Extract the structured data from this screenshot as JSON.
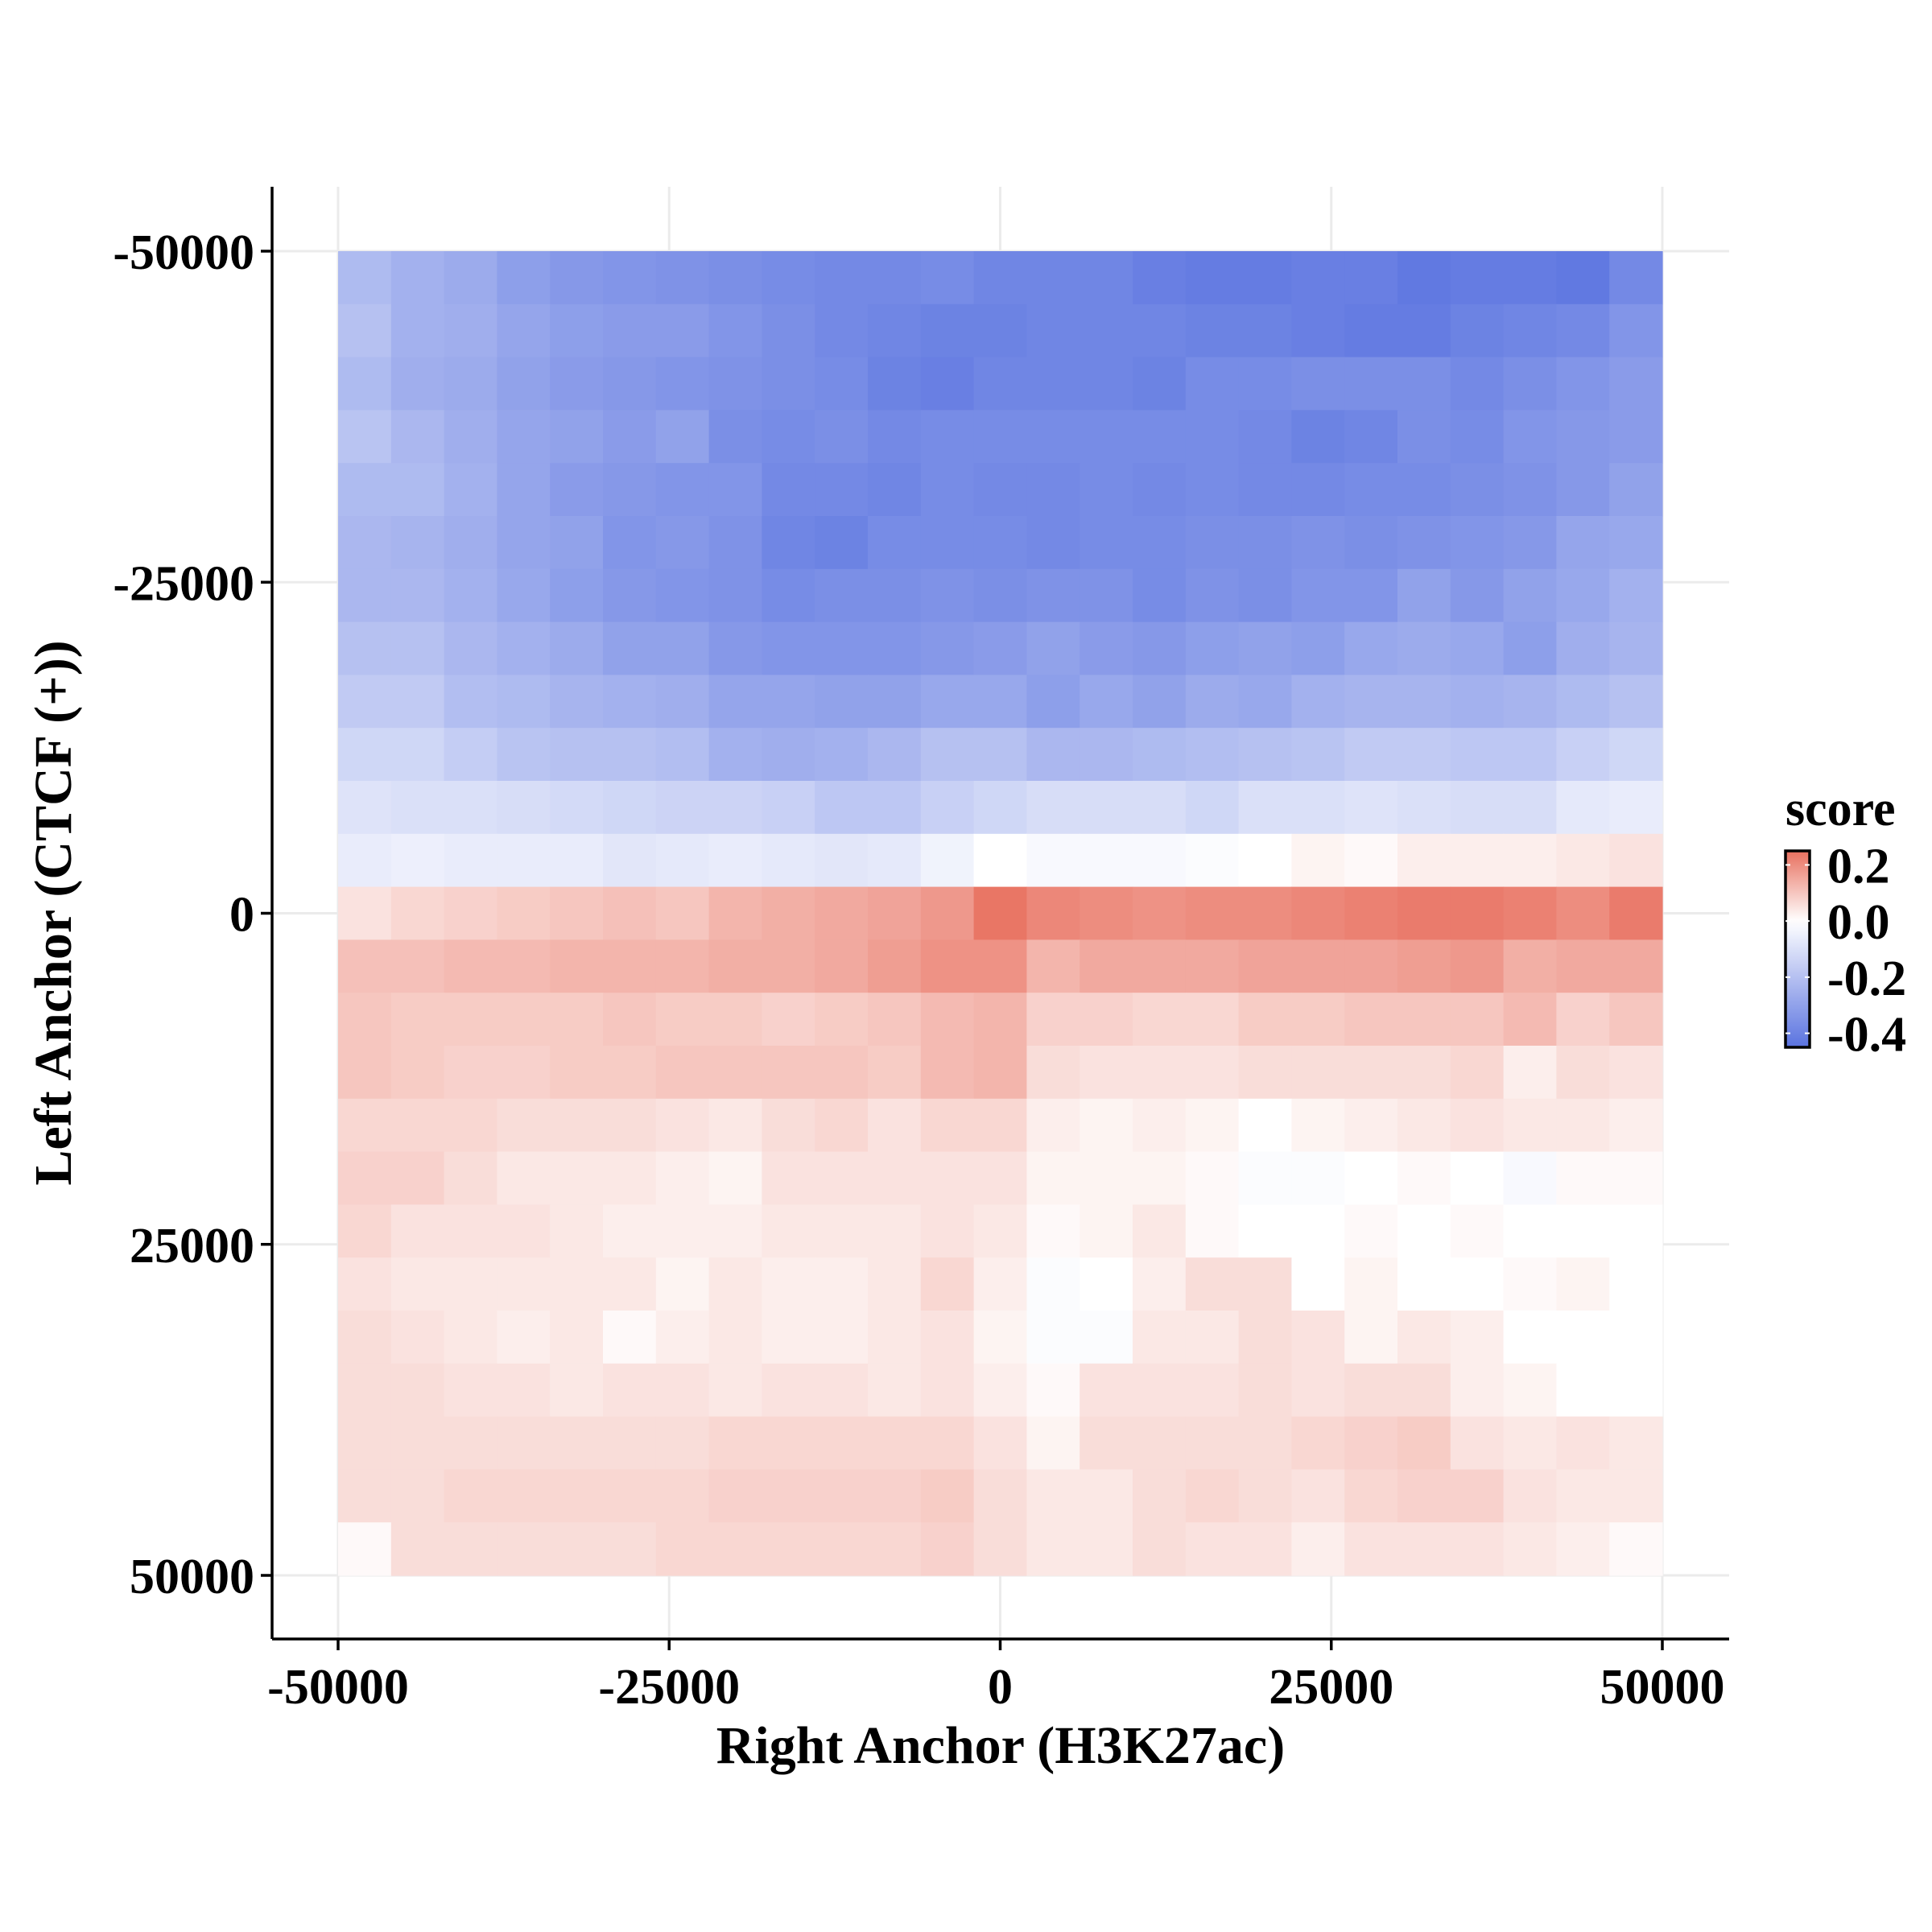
{
  "chart_data": {
    "type": "heatmap",
    "title": "",
    "xlabel": "Right Anchor (H3K27ac)",
    "ylabel": "Left Anchor (CTCF (+))",
    "x_range": [
      -50000,
      50000
    ],
    "y_range": [
      -50000,
      50000
    ],
    "y_axis_reversed": true,
    "x_ticks": [
      -50000,
      -25000,
      0,
      25000,
      50000
    ],
    "y_ticks": [
      -50000,
      -25000,
      0,
      25000,
      50000
    ],
    "x_tick_labels": [
      "-50000",
      "-25000",
      "0",
      "25000",
      "50000"
    ],
    "y_tick_labels": [
      "-50000",
      "-25000",
      "0",
      "25000",
      "50000"
    ],
    "grid": true,
    "legend": {
      "title": "score",
      "position": "right",
      "ticks": [
        0.2,
        0.0,
        -0.2,
        -0.4
      ],
      "tick_labels": [
        "0.2",
        "0.0",
        "-0.2",
        "-0.4"
      ],
      "range": [
        -0.45,
        0.25
      ],
      "low_color": "#5a73e0",
      "mid_color": "#ffffff",
      "high_color": "#e8705f"
    },
    "x_bins": [
      -50000,
      -46000,
      -42000,
      -38000,
      -34000,
      -30000,
      -26000,
      -22000,
      -18000,
      -14000,
      -10000,
      -6000,
      -2000,
      2000,
      6000,
      10000,
      14000,
      18000,
      22000,
      26000,
      30000,
      34000,
      38000,
      42000,
      46000,
      50000
    ],
    "y_bins": [
      -50000,
      -46000,
      -42000,
      -38000,
      -34000,
      -30000,
      -26000,
      -22000,
      -18000,
      -14000,
      -10000,
      -6000,
      -2000,
      2000,
      6000,
      10000,
      14000,
      18000,
      22000,
      26000,
      30000,
      34000,
      38000,
      42000,
      46000,
      50000
    ],
    "values": [
      [
        -0.22,
        -0.25,
        -0.27,
        -0.31,
        -0.33,
        -0.34,
        -0.35,
        -0.36,
        -0.37,
        -0.38,
        -0.38,
        -0.37,
        -0.39,
        -0.39,
        -0.39,
        -0.41,
        -0.42,
        -0.42,
        -0.41,
        -0.41,
        -0.43,
        -0.42,
        -0.42,
        -0.43,
        -0.38
      ],
      [
        -0.2,
        -0.25,
        -0.26,
        -0.29,
        -0.31,
        -0.32,
        -0.32,
        -0.34,
        -0.36,
        -0.38,
        -0.39,
        -0.4,
        -0.4,
        -0.39,
        -0.39,
        -0.39,
        -0.4,
        -0.4,
        -0.41,
        -0.42,
        -0.42,
        -0.4,
        -0.39,
        -0.38,
        -0.34
      ],
      [
        -0.22,
        -0.26,
        -0.27,
        -0.3,
        -0.32,
        -0.33,
        -0.34,
        -0.35,
        -0.36,
        -0.37,
        -0.4,
        -0.41,
        -0.39,
        -0.39,
        -0.39,
        -0.4,
        -0.37,
        -0.37,
        -0.36,
        -0.36,
        -0.36,
        -0.38,
        -0.36,
        -0.34,
        -0.32
      ],
      [
        -0.19,
        -0.23,
        -0.26,
        -0.29,
        -0.3,
        -0.32,
        -0.3,
        -0.36,
        -0.37,
        -0.36,
        -0.38,
        -0.37,
        -0.37,
        -0.37,
        -0.37,
        -0.37,
        -0.37,
        -0.38,
        -0.4,
        -0.39,
        -0.36,
        -0.37,
        -0.34,
        -0.33,
        -0.32
      ],
      [
        -0.22,
        -0.22,
        -0.25,
        -0.29,
        -0.32,
        -0.33,
        -0.34,
        -0.34,
        -0.38,
        -0.38,
        -0.39,
        -0.37,
        -0.38,
        -0.38,
        -0.37,
        -0.38,
        -0.37,
        -0.38,
        -0.38,
        -0.37,
        -0.37,
        -0.36,
        -0.35,
        -0.33,
        -0.3
      ],
      [
        -0.23,
        -0.24,
        -0.26,
        -0.29,
        -0.3,
        -0.34,
        -0.33,
        -0.35,
        -0.39,
        -0.4,
        -0.37,
        -0.37,
        -0.37,
        -0.38,
        -0.37,
        -0.37,
        -0.36,
        -0.36,
        -0.35,
        -0.36,
        -0.35,
        -0.34,
        -0.33,
        -0.29,
        -0.28
      ],
      [
        -0.23,
        -0.23,
        -0.25,
        -0.28,
        -0.31,
        -0.33,
        -0.34,
        -0.35,
        -0.37,
        -0.36,
        -0.36,
        -0.35,
        -0.36,
        -0.35,
        -0.35,
        -0.37,
        -0.35,
        -0.36,
        -0.34,
        -0.34,
        -0.3,
        -0.33,
        -0.3,
        -0.28,
        -0.25
      ],
      [
        -0.2,
        -0.2,
        -0.23,
        -0.25,
        -0.27,
        -0.3,
        -0.3,
        -0.33,
        -0.34,
        -0.34,
        -0.34,
        -0.33,
        -0.32,
        -0.3,
        -0.32,
        -0.33,
        -0.31,
        -0.3,
        -0.31,
        -0.28,
        -0.27,
        -0.28,
        -0.31,
        -0.26,
        -0.24
      ],
      [
        -0.17,
        -0.17,
        -0.21,
        -0.22,
        -0.24,
        -0.25,
        -0.26,
        -0.29,
        -0.29,
        -0.3,
        -0.3,
        -0.28,
        -0.28,
        -0.31,
        -0.28,
        -0.3,
        -0.27,
        -0.28,
        -0.25,
        -0.24,
        -0.24,
        -0.25,
        -0.24,
        -0.22,
        -0.2
      ],
      [
        -0.13,
        -0.13,
        -0.16,
        -0.19,
        -0.2,
        -0.2,
        -0.21,
        -0.25,
        -0.26,
        -0.25,
        -0.23,
        -0.2,
        -0.2,
        -0.23,
        -0.23,
        -0.22,
        -0.21,
        -0.2,
        -0.19,
        -0.17,
        -0.17,
        -0.18,
        -0.18,
        -0.15,
        -0.13
      ],
      [
        -0.09,
        -0.1,
        -0.1,
        -0.11,
        -0.12,
        -0.13,
        -0.14,
        -0.14,
        -0.15,
        -0.18,
        -0.18,
        -0.15,
        -0.13,
        -0.11,
        -0.11,
        -0.11,
        -0.13,
        -0.1,
        -0.1,
        -0.09,
        -0.1,
        -0.11,
        -0.11,
        -0.07,
        -0.06
      ],
      [
        -0.06,
        -0.05,
        -0.06,
        -0.06,
        -0.06,
        -0.08,
        -0.07,
        -0.06,
        -0.07,
        -0.08,
        -0.07,
        -0.04,
        0.0,
        -0.02,
        -0.02,
        -0.02,
        -0.01,
        0.0,
        0.02,
        0.01,
        0.03,
        0.03,
        0.03,
        0.04,
        0.05
      ],
      [
        0.05,
        0.07,
        0.08,
        0.09,
        0.1,
        0.11,
        0.1,
        0.13,
        0.14,
        0.15,
        0.16,
        0.18,
        0.24,
        0.21,
        0.2,
        0.19,
        0.2,
        0.2,
        0.21,
        0.22,
        0.23,
        0.23,
        0.22,
        0.2,
        0.23
      ],
      [
        0.11,
        0.11,
        0.12,
        0.12,
        0.13,
        0.13,
        0.13,
        0.14,
        0.14,
        0.15,
        0.17,
        0.19,
        0.19,
        0.13,
        0.15,
        0.15,
        0.15,
        0.16,
        0.16,
        0.16,
        0.17,
        0.18,
        0.14,
        0.15,
        0.15
      ],
      [
        0.1,
        0.09,
        0.09,
        0.09,
        0.09,
        0.1,
        0.09,
        0.09,
        0.08,
        0.09,
        0.1,
        0.12,
        0.13,
        0.08,
        0.08,
        0.07,
        0.07,
        0.09,
        0.09,
        0.1,
        0.1,
        0.1,
        0.12,
        0.08,
        0.1
      ],
      [
        0.1,
        0.09,
        0.08,
        0.08,
        0.09,
        0.09,
        0.1,
        0.1,
        0.1,
        0.1,
        0.09,
        0.12,
        0.13,
        0.06,
        0.05,
        0.05,
        0.05,
        0.06,
        0.06,
        0.06,
        0.06,
        0.07,
        0.03,
        0.06,
        0.05
      ],
      [
        0.07,
        0.07,
        0.07,
        0.06,
        0.06,
        0.06,
        0.05,
        0.04,
        0.06,
        0.07,
        0.05,
        0.07,
        0.07,
        0.03,
        0.02,
        0.03,
        0.02,
        0.0,
        0.02,
        0.03,
        0.04,
        0.05,
        0.04,
        0.04,
        0.03
      ],
      [
        0.08,
        0.08,
        0.06,
        0.04,
        0.04,
        0.04,
        0.03,
        0.02,
        0.05,
        0.05,
        0.05,
        0.05,
        0.05,
        0.02,
        0.02,
        0.02,
        0.01,
        -0.01,
        -0.01,
        0.0,
        0.01,
        0.0,
        -0.02,
        0.01,
        0.01
      ],
      [
        0.07,
        0.05,
        0.05,
        0.05,
        0.04,
        0.03,
        0.03,
        0.03,
        0.04,
        0.04,
        0.04,
        0.05,
        0.04,
        0.01,
        0.02,
        0.04,
        0.01,
        0.0,
        0.0,
        0.01,
        0.0,
        0.01,
        0.0,
        0.0,
        0.0
      ],
      [
        0.05,
        0.04,
        0.04,
        0.04,
        0.04,
        0.04,
        0.02,
        0.04,
        0.03,
        0.03,
        0.04,
        0.07,
        0.03,
        -0.01,
        0.0,
        0.03,
        0.06,
        0.06,
        0.0,
        0.02,
        0.0,
        0.0,
        0.01,
        0.02,
        0.0
      ],
      [
        0.06,
        0.05,
        0.04,
        0.03,
        0.04,
        0.01,
        0.03,
        0.04,
        0.03,
        0.03,
        0.04,
        0.05,
        0.02,
        -0.01,
        -0.01,
        0.04,
        0.04,
        0.06,
        0.05,
        0.02,
        0.04,
        0.03,
        0.0,
        0.0,
        0.0
      ],
      [
        0.06,
        0.06,
        0.05,
        0.05,
        0.04,
        0.05,
        0.05,
        0.04,
        0.05,
        0.05,
        0.04,
        0.05,
        0.03,
        0.01,
        0.05,
        0.05,
        0.05,
        0.06,
        0.05,
        0.06,
        0.06,
        0.03,
        0.02,
        0.0,
        0.0
      ],
      [
        0.06,
        0.06,
        0.06,
        0.06,
        0.06,
        0.06,
        0.06,
        0.07,
        0.07,
        0.07,
        0.07,
        0.07,
        0.05,
        0.02,
        0.06,
        0.06,
        0.06,
        0.06,
        0.07,
        0.08,
        0.09,
        0.05,
        0.04,
        0.05,
        0.04
      ],
      [
        0.06,
        0.06,
        0.07,
        0.07,
        0.07,
        0.07,
        0.07,
        0.08,
        0.08,
        0.08,
        0.08,
        0.09,
        0.06,
        0.04,
        0.04,
        0.06,
        0.07,
        0.06,
        0.05,
        0.07,
        0.08,
        0.08,
        0.05,
        0.04,
        0.04
      ],
      [
        0.01,
        0.06,
        0.06,
        0.06,
        0.06,
        0.06,
        0.07,
        0.07,
        0.07,
        0.07,
        0.07,
        0.08,
        0.06,
        0.04,
        0.04,
        0.06,
        0.05,
        0.05,
        0.03,
        0.05,
        0.05,
        0.05,
        0.04,
        0.03,
        0.01
      ]
    ]
  }
}
